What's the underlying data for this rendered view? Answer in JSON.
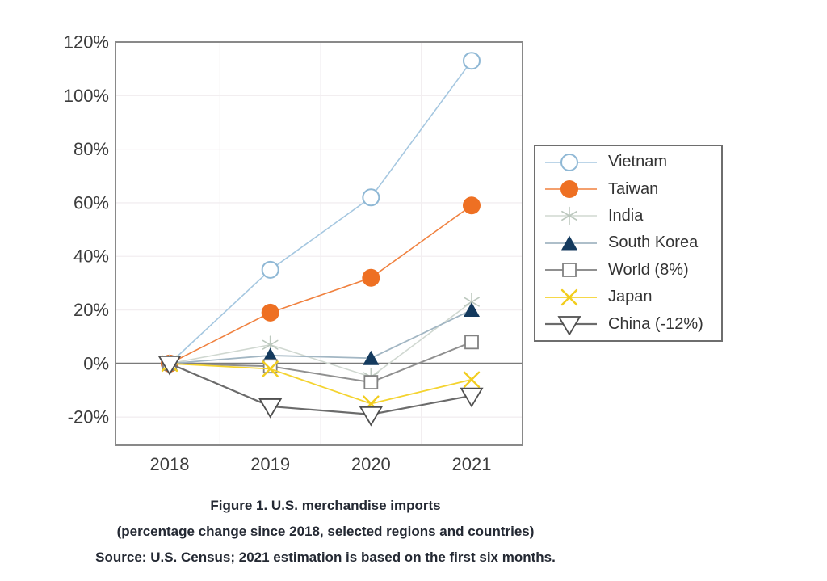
{
  "chart_data": {
    "type": "line",
    "title": "Figure 1. U.S. merchandise imports",
    "subtitle": "(percentage change since 2018, selected regions and countries)",
    "source": "Source: U.S. Census; 2021 estimation is based on the first six months.",
    "categories": [
      "2018",
      "2019",
      "2020",
      "2021"
    ],
    "series": [
      {
        "name": "Vietnam",
        "values": [
          0,
          35,
          62,
          113
        ],
        "line_color": "#a5c7e0",
        "marker": "circle-open",
        "marker_color": "#8fb8d5",
        "line_width": 1.6
      },
      {
        "name": "Taiwan",
        "values": [
          0,
          19,
          32,
          59
        ],
        "line_color": "#f0813f",
        "marker": "circle-filled",
        "marker_color": "#ee7023",
        "line_width": 1.6
      },
      {
        "name": "India",
        "values": [
          0,
          7,
          -5,
          23
        ],
        "line_color": "#d0d8d1",
        "marker": "asterisk",
        "marker_color": "#bcc8be",
        "line_width": 1.6
      },
      {
        "name": "South Korea",
        "values": [
          0,
          3,
          2,
          20
        ],
        "line_color": "#a2b6c3",
        "marker": "triangle-filled",
        "marker_color": "#143a5e",
        "line_width": 1.8
      },
      {
        "name": "World (8%)",
        "values": [
          0,
          -1,
          -7,
          8
        ],
        "line_color": "#909090",
        "marker": "square-open",
        "marker_color": "#828282",
        "line_width": 2
      },
      {
        "name": "Japan",
        "values": [
          0,
          -2,
          -15,
          -6
        ],
        "line_color": "#f4d32f",
        "marker": "x",
        "marker_color": "#f2cd1e",
        "line_width": 1.8
      },
      {
        "name": "China (-12%)",
        "values": [
          0,
          -16,
          -19,
          -12
        ],
        "line_color": "#6b6b6b",
        "marker": "triangle-down-open",
        "marker_color": "#4f4f4f",
        "line_width": 2.2
      }
    ],
    "y_ticks": [
      {
        "label": "120%",
        "value": 120
      },
      {
        "label": "100%",
        "value": 100
      },
      {
        "label": "80%",
        "value": 80
      },
      {
        "label": "60%",
        "value": 60
      },
      {
        "label": "40%",
        "value": 40
      },
      {
        "label": "20%",
        "value": 20
      },
      {
        "label": "0%",
        "value": 0
      },
      {
        "label": "-20%",
        "value": -20
      }
    ],
    "ylim": [
      -30.5,
      120
    ],
    "grid": true,
    "grid_color": "#f2eef0",
    "zero_line_color": "#7a7a7a",
    "border_color": "#898989",
    "tick_label_color": "#3d3d3d",
    "legend_position": "right"
  }
}
